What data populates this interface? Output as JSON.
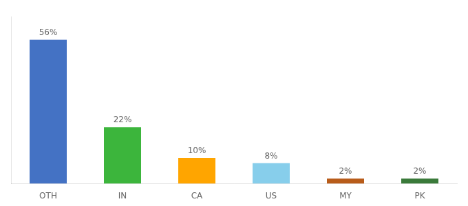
{
  "chart_data": {
    "type": "bar",
    "categories": [
      "OTH",
      "IN",
      "CA",
      "US",
      "MY",
      "PK"
    ],
    "values": [
      56,
      22,
      10,
      8,
      2,
      2
    ],
    "value_labels": [
      "56%",
      "22%",
      "10%",
      "8%",
      "2%",
      "2%"
    ],
    "colors": [
      "#4472C4",
      "#3CB53C",
      "#FFA500",
      "#87CEEB",
      "#B85C1A",
      "#3A7A3A"
    ],
    "ylim": [
      0,
      65
    ],
    "grid": false,
    "data_labels": true,
    "tick_labels": "x"
  }
}
